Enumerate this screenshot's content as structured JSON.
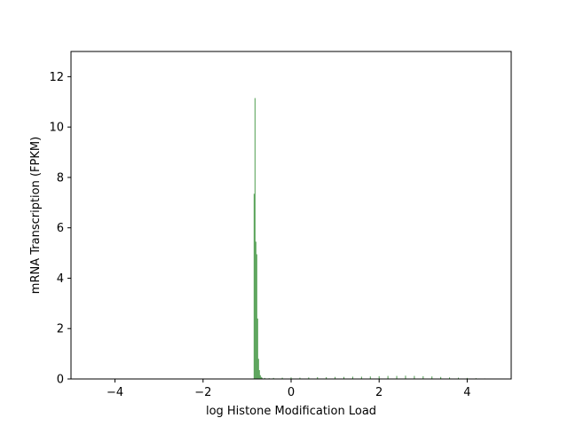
{
  "chart_data": {
    "type": "bar",
    "title": "",
    "xlabel": "log Histone Modification Load",
    "ylabel": "mRNA Transcription (FPKM)",
    "xlim": [
      -5,
      5
    ],
    "ylim": [
      0,
      13
    ],
    "xticks": [
      -4,
      -2,
      0,
      2,
      4
    ],
    "xtick_labels": [
      "−4",
      "−2",
      "0",
      "2",
      "4"
    ],
    "yticks": [
      0,
      2,
      4,
      6,
      8,
      10,
      12
    ],
    "ytick_labels": [
      "0",
      "2",
      "4",
      "6",
      "8",
      "10",
      "12"
    ],
    "grid": false,
    "legend": "none",
    "colors": {
      "bars": "#2e8b2e",
      "axes": "#000000",
      "background": "#ffffff"
    },
    "bar_width": 0.02,
    "x": [
      -0.84,
      -0.82,
      -0.8,
      -0.78,
      -0.76,
      -0.74,
      -0.72,
      -0.7,
      -0.68,
      -0.66,
      -0.6,
      -0.5,
      -0.4,
      -0.2,
      0.0,
      0.2,
      0.4,
      0.6,
      0.8,
      1.0,
      1.2,
      1.4,
      1.6,
      1.8,
      2.0,
      2.2,
      2.4,
      2.6,
      2.8,
      3.0,
      3.2,
      3.4,
      3.6,
      3.8,
      4.0,
      4.2,
      4.4
    ],
    "values": [
      7.35,
      11.15,
      5.45,
      4.95,
      2.4,
      0.8,
      0.35,
      0.15,
      0.08,
      0.05,
      0.04,
      0.03,
      0.04,
      0.05,
      0.06,
      0.05,
      0.06,
      0.07,
      0.07,
      0.08,
      0.08,
      0.09,
      0.09,
      0.1,
      0.11,
      0.12,
      0.12,
      0.13,
      0.12,
      0.11,
      0.1,
      0.08,
      0.06,
      0.05,
      0.04,
      0.03,
      0.02
    ]
  }
}
